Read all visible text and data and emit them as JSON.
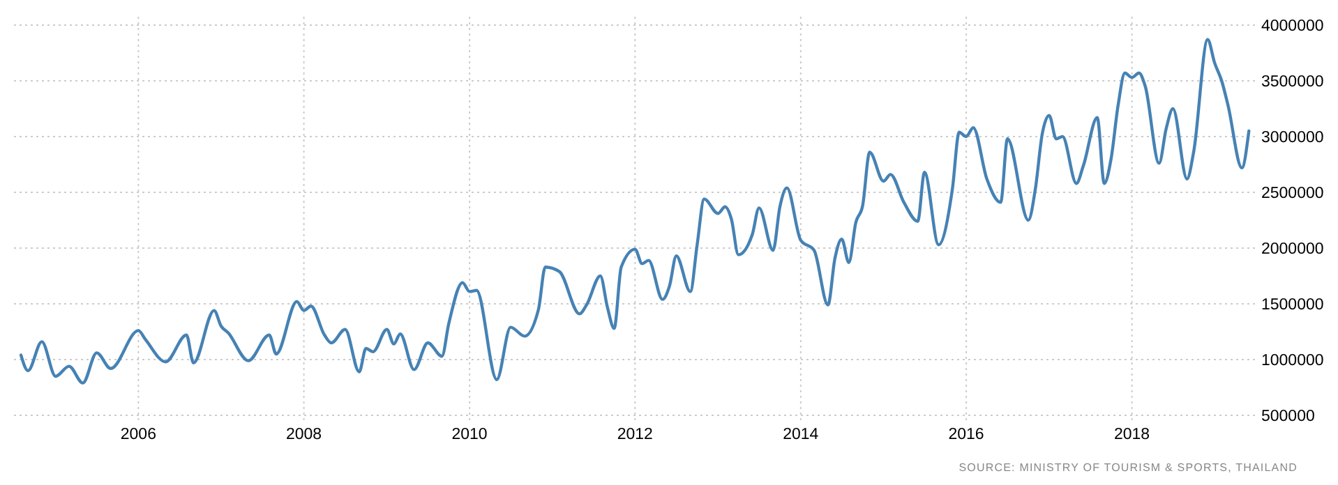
{
  "chart_data": {
    "type": "line",
    "annotations": [
      "SOURCE: MINISTRY OF TOURISM & SPORTS, THAILAND"
    ],
    "x": [
      "2004-08",
      "2004-09",
      "2004-11",
      "2005-01",
      "2005-03",
      "2005-05",
      "2005-07",
      "2005-09",
      "2006-01",
      "2006-02",
      "2006-05",
      "2006-08",
      "2006-09",
      "2006-12",
      "2007-01",
      "2007-02",
      "2007-05",
      "2007-08",
      "2007-09",
      "2007-12",
      "2008-01",
      "2008-02",
      "2008-04",
      "2008-05",
      "2008-07",
      "2008-09",
      "2008-10",
      "2008-11",
      "2009-01",
      "2009-02",
      "2009-03",
      "2009-05",
      "2009-07",
      "2009-09",
      "2009-10",
      "2009-12",
      "2010-01",
      "2010-02",
      "2010-05",
      "2010-07",
      "2010-09",
      "2010-11",
      "2010-12",
      "2011-02",
      "2011-05",
      "2011-06",
      "2011-08",
      "2011-09",
      "2011-10",
      "2011-11",
      "2012-01",
      "2012-02",
      "2012-03",
      "2012-05",
      "2012-06",
      "2012-07",
      "2012-09",
      "2012-10",
      "2012-11",
      "2013-01",
      "2013-02",
      "2013-03",
      "2013-04",
      "2013-06",
      "2013-07",
      "2013-09",
      "2013-10",
      "2013-11",
      "2014-01",
      "2014-03",
      "2014-05",
      "2014-06",
      "2014-07",
      "2014-08",
      "2014-09",
      "2014-10",
      "2014-11",
      "2015-01",
      "2015-02",
      "2015-04",
      "2015-06",
      "2015-07",
      "2015-09",
      "2015-11",
      "2015-12",
      "2016-01",
      "2016-02",
      "2016-04",
      "2016-06",
      "2016-07",
      "2016-10",
      "2016-11",
      "2016-12",
      "2017-01",
      "2017-02",
      "2017-03",
      "2017-05",
      "2017-06",
      "2017-08",
      "2017-09",
      "2017-10",
      "2017-11",
      "2017-12",
      "2018-01",
      "2018-02",
      "2018-03",
      "2018-05",
      "2018-06",
      "2018-07",
      "2018-09",
      "2018-10",
      "2018-12",
      "2019-01",
      "2019-02",
      "2019-03",
      "2019-05",
      "2019-06"
    ],
    "series": [
      {
        "color": "#4682b4",
        "values": [
          1040000,
          900000,
          1160000,
          850000,
          940000,
          790000,
          1060000,
          920000,
          1260000,
          1180000,
          980000,
          1220000,
          970000,
          1440000,
          1300000,
          1240000,
          990000,
          1220000,
          1050000,
          1520000,
          1440000,
          1480000,
          1220000,
          1150000,
          1270000,
          890000,
          1100000,
          1070000,
          1270000,
          1140000,
          1230000,
          910000,
          1150000,
          1030000,
          1320000,
          1690000,
          1610000,
          1620000,
          820000,
          1290000,
          1210000,
          1450000,
          1830000,
          1790000,
          1410000,
          1490000,
          1750000,
          1470000,
          1280000,
          1830000,
          1990000,
          1860000,
          1890000,
          1540000,
          1660000,
          1930000,
          1610000,
          2030000,
          2440000,
          2310000,
          2370000,
          2260000,
          1940000,
          2120000,
          2360000,
          1980000,
          2370000,
          2540000,
          2070000,
          1980000,
          1490000,
          1910000,
          2080000,
          1870000,
          2230000,
          2380000,
          2860000,
          2600000,
          2660000,
          2410000,
          2240000,
          2680000,
          2030000,
          2530000,
          3040000,
          3000000,
          3080000,
          2620000,
          2410000,
          2980000,
          2250000,
          2530000,
          3020000,
          3190000,
          2980000,
          3000000,
          2580000,
          2740000,
          3170000,
          2580000,
          2800000,
          3280000,
          3570000,
          3530000,
          3570000,
          3450000,
          2760000,
          3070000,
          3250000,
          2620000,
          2870000,
          3870000,
          3660000,
          3500000,
          3280000,
          2720000,
          3050000
        ]
      }
    ],
    "xlim": [
      "2004-07",
      "2019-07"
    ],
    "xticks": [
      {
        "value": "2006-01",
        "label": "2006"
      },
      {
        "value": "2008-01",
        "label": "2008"
      },
      {
        "value": "2010-01",
        "label": "2010"
      },
      {
        "value": "2012-01",
        "label": "2012"
      },
      {
        "value": "2014-01",
        "label": "2014"
      },
      {
        "value": "2016-01",
        "label": "2016"
      },
      {
        "value": "2018-01",
        "label": "2018"
      }
    ],
    "ylim": [
      500000,
      4000000
    ],
    "yticks": [
      500000,
      1000000,
      1500000,
      2000000,
      2500000,
      3000000,
      3500000,
      4000000
    ],
    "grid": true,
    "marker": "none",
    "line_style": "solid"
  }
}
